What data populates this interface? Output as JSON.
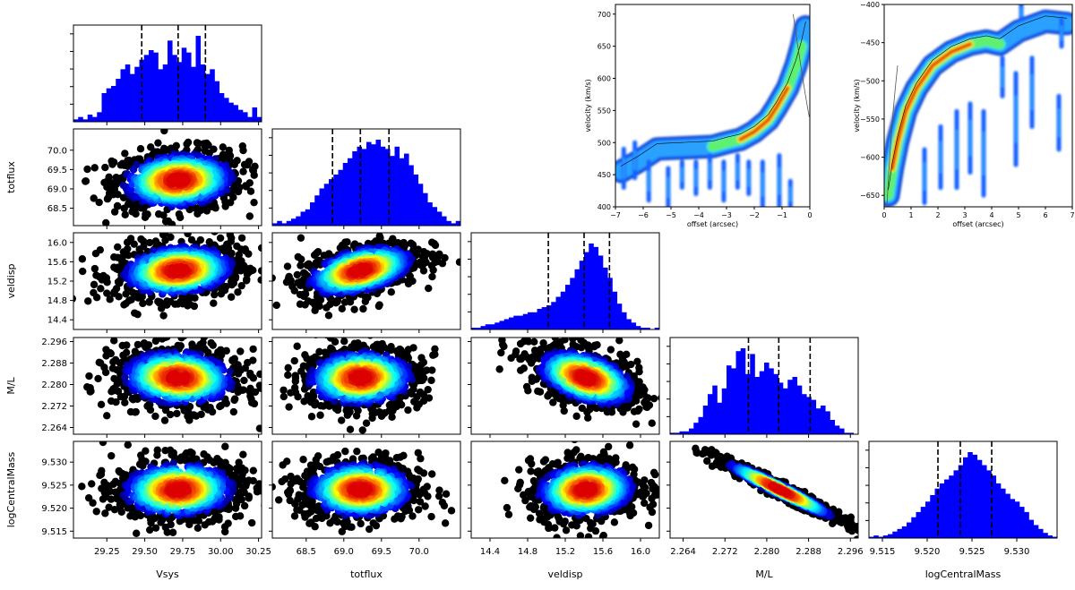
{
  "chart_data": [
    {
      "type": "corner",
      "parameters": [
        {
          "name": "Vsys",
          "range": [
            29.03,
            30.27
          ],
          "ticks": [
            "29.25",
            "29.50",
            "29.75",
            "30.00",
            "30.25"
          ],
          "tick_values": [
            29.25,
            29.5,
            29.75,
            30.0,
            30.25
          ],
          "quantiles": [
            29.48,
            29.72,
            29.9
          ],
          "center": 29.72,
          "sigma": 0.2
        },
        {
          "name": "totflux",
          "range": [
            68.05,
            70.55
          ],
          "ticks": [
            "68.5",
            "69.0",
            "69.5",
            "70.0"
          ],
          "tick_values": [
            68.5,
            69.0,
            69.5,
            70.0
          ],
          "quantiles": [
            68.85,
            69.22,
            69.6
          ],
          "center": 69.22,
          "sigma": 0.38
        },
        {
          "name": "veldisp",
          "range": [
            14.2,
            16.2
          ],
          "ticks": [
            "14.4",
            "14.8",
            "15.2",
            "15.6",
            "16.0"
          ],
          "tick_values": [
            14.4,
            14.8,
            15.2,
            15.6,
            16.0
          ],
          "quantiles": [
            15.02,
            15.4,
            15.67
          ],
          "center": 15.42,
          "sigma": 0.28
        },
        {
          "name": "M/L",
          "range": [
            2.2615,
            2.2975
          ],
          "ticks": [
            "2.264",
            "2.272",
            "2.280",
            "2.288",
            "2.296"
          ],
          "tick_values": [
            2.264,
            2.272,
            2.28,
            2.288,
            2.296
          ],
          "quantiles": [
            2.2765,
            2.2823,
            2.2883
          ],
          "center": 2.2825,
          "sigma": 0.0055
        },
        {
          "name": "logCentralMass",
          "range": [
            9.5135,
            9.5345
          ],
          "ticks": [
            "9.515",
            "9.520",
            "9.525",
            "9.530"
          ],
          "tick_values": [
            9.515,
            9.52,
            9.525,
            9.53
          ],
          "quantiles": [
            9.5212,
            9.5237,
            9.5272
          ],
          "center": 9.524,
          "sigma": 0.0032
        }
      ],
      "histograms": [
        [
          1,
          2,
          1,
          3,
          2,
          4,
          12,
          14,
          15,
          18,
          22,
          24,
          20,
          23,
          26,
          28,
          30,
          29,
          22,
          24,
          34,
          28,
          25,
          31,
          29,
          23,
          36,
          24,
          20,
          22,
          17,
          12,
          10,
          8,
          7,
          5,
          4,
          2,
          6,
          2
        ],
        [
          1,
          2,
          1,
          2,
          3,
          4,
          6,
          7,
          10,
          13,
          16,
          18,
          20,
          22,
          24,
          27,
          29,
          32,
          34,
          33,
          36,
          35,
          37,
          34,
          33,
          30,
          34,
          29,
          31,
          26,
          22,
          18,
          14,
          10,
          8,
          6,
          4,
          2,
          1,
          2
        ],
        [
          1,
          1,
          2,
          3,
          3,
          4,
          5,
          6,
          7,
          8,
          8,
          9,
          10,
          10,
          12,
          13,
          14,
          16,
          19,
          22,
          26,
          30,
          35,
          40,
          45,
          50,
          48,
          43,
          36,
          30,
          22,
          15,
          10,
          6,
          4,
          2,
          1,
          1,
          0,
          1
        ],
        [
          1,
          1,
          2,
          2,
          4,
          8,
          12,
          20,
          28,
          34,
          22,
          32,
          48,
          46,
          58,
          60,
          42,
          56,
          40,
          44,
          50,
          46,
          42,
          36,
          32,
          38,
          40,
          34,
          28,
          26,
          24,
          18,
          20,
          16,
          10,
          6,
          4,
          1,
          1,
          0
        ],
        [
          1,
          2,
          1,
          2,
          3,
          5,
          7,
          9,
          12,
          16,
          20,
          24,
          28,
          33,
          38,
          42,
          45,
          48,
          52,
          56,
          62,
          66,
          64,
          60,
          56,
          52,
          48,
          42,
          38,
          34,
          30,
          28,
          24,
          20,
          14,
          10,
          7,
          4,
          2,
          1
        ]
      ],
      "correlations": {
        "1-0": 0.1,
        "2-0": 0.15,
        "2-1": 0.45,
        "3-0": -0.1,
        "3-1": 0.05,
        "3-2": -0.45,
        "4-0": 0.05,
        "4-1": 0.0,
        "4-2": 0.1,
        "4-3": -0.97
      }
    },
    {
      "type": "heatmap",
      "name": "position-velocity-left",
      "xlabel": "offset (arcsec)",
      "ylabel": "velocity (km/s)",
      "xlim": [
        -7,
        0
      ],
      "ylim": [
        400,
        715
      ],
      "xticks": [
        "−7",
        "−6",
        "−5",
        "−4",
        "−3",
        "−2",
        "−1",
        "0"
      ],
      "xtick_values": [
        -7,
        -6,
        -5,
        -4,
        -3,
        -2,
        -1,
        0
      ],
      "yticks": [
        "400",
        "450",
        "500",
        "550",
        "600",
        "650",
        "700"
      ],
      "ytick_values": [
        400,
        450,
        500,
        550,
        600,
        650,
        700
      ],
      "ridge": [
        [
          -6.8,
          455
        ],
        [
          -6.2,
          470
        ],
        [
          -5.5,
          490
        ],
        [
          -4.5,
          492
        ],
        [
          -3.5,
          494
        ],
        [
          -3.0,
          500
        ],
        [
          -2.5,
          505
        ],
        [
          -2.0,
          517
        ],
        [
          -1.5,
          535
        ],
        [
          -1.2,
          555
        ],
        [
          -0.8,
          585
        ],
        [
          -0.5,
          620
        ],
        [
          -0.3,
          650
        ],
        [
          -0.15,
          680
        ]
      ],
      "peak": [
        -2.0,
        515
      ]
    },
    {
      "type": "heatmap",
      "name": "position-velocity-right",
      "xlabel": "offset (arcsec)",
      "ylabel": "velocity (km/s)",
      "xlim": [
        0,
        7
      ],
      "ylim": [
        -665,
        -400
      ],
      "xticks": [
        "0",
        "1",
        "2",
        "3",
        "4",
        "5",
        "6",
        "7"
      ],
      "xtick_values": [
        0,
        1,
        2,
        3,
        4,
        5,
        6,
        7
      ],
      "yticks": [
        "−650",
        "−600",
        "−550",
        "−500",
        "−450",
        "−400"
      ],
      "ytick_values": [
        -650,
        -600,
        -550,
        -500,
        -450,
        -400
      ],
      "ridge": [
        [
          0.15,
          -650
        ],
        [
          0.3,
          -615
        ],
        [
          0.5,
          -580
        ],
        [
          0.8,
          -540
        ],
        [
          1.2,
          -510
        ],
        [
          1.8,
          -480
        ],
        [
          2.5,
          -462
        ],
        [
          3.2,
          -452
        ],
        [
          3.8,
          -448
        ],
        [
          4.3,
          -452
        ],
        [
          5.0,
          -435
        ],
        [
          6.0,
          -422
        ],
        [
          6.8,
          -425
        ]
      ],
      "peak": [
        0.9,
        -525
      ]
    }
  ]
}
